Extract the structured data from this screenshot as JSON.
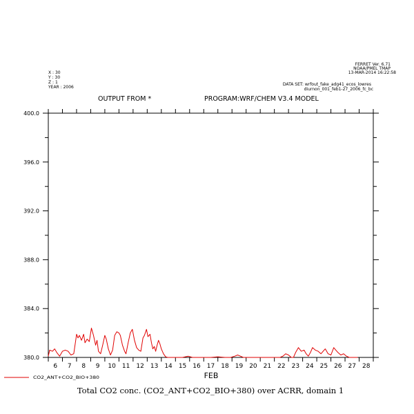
{
  "header": {
    "ferret_lines": [
      "FERRET Ver. 6.71",
      "NOAA/PMEL TMAP",
      "13-MAR-2014 16:22:58"
    ],
    "coords": [
      "X : 30",
      "Y : 30",
      "Z : 1",
      "YEAR : 2006"
    ],
    "dataset_lines": [
      "DATA SET: wrfout_fake_adg41_ecos_lowres",
      "diurnon_001_feb1-27_2006_fc_bc"
    ],
    "output_from": "OUTPUT FROM *",
    "program": "PROGRAM:WRF/CHEM V3.4 MODEL"
  },
  "chart_data": {
    "type": "line",
    "title": "Total CO2 conc. (CO2_ANT+CO2_BIO+380) over ACRR, domain 1",
    "xlabel": "FEB",
    "ylabel": "",
    "legend_label": "CO2_ANT+CO2_BIO+380",
    "xlim": [
      5.5,
      28.5
    ],
    "ylim": [
      380,
      400
    ],
    "x_ticks": [
      "6",
      "7",
      "8",
      "9",
      "10",
      "11",
      "12",
      "13",
      "14",
      "15",
      "16",
      "17",
      "18",
      "19",
      "20",
      "21",
      "22",
      "23",
      "24",
      "25",
      "26",
      "27",
      "28"
    ],
    "y_ticks": [
      "380.0",
      "384.0",
      "388.0",
      "392.0",
      "396.0",
      "400.0"
    ],
    "series": [
      {
        "color": "#e00000",
        "x": [
          5.5,
          5.6,
          5.8,
          5.95,
          6.1,
          6.3,
          6.5,
          6.7,
          6.9,
          7.1,
          7.3,
          7.5,
          7.6,
          7.7,
          7.85,
          8.0,
          8.1,
          8.25,
          8.4,
          8.55,
          8.7,
          8.85,
          8.95,
          9.05,
          9.2,
          9.35,
          9.5,
          9.6,
          9.75,
          9.9,
          10.05,
          10.2,
          10.35,
          10.5,
          10.6,
          10.75,
          10.9,
          11.0,
          11.15,
          11.3,
          11.45,
          11.6,
          11.75,
          11.9,
          12.05,
          12.2,
          12.3,
          12.45,
          12.55,
          12.7,
          12.8,
          12.9,
          13.0,
          13.1,
          13.2,
          13.3,
          13.4,
          13.5,
          13.65,
          13.8,
          13.95,
          14.1,
          14.25,
          14.4,
          14.6,
          15.0,
          15.4,
          15.7,
          16.0,
          16.3,
          16.6,
          17.0,
          17.5,
          18.0,
          18.4,
          18.7,
          18.9,
          19.1,
          19.3,
          19.6,
          20.0,
          20.4,
          20.8,
          21.2,
          21.6,
          21.9,
          22.1,
          22.3,
          22.5,
          22.7,
          22.85,
          23.0,
          23.2,
          23.4,
          23.6,
          23.75,
          23.9,
          24.05,
          24.2,
          24.4,
          24.6,
          24.8,
          24.95,
          25.1,
          25.3,
          25.5,
          25.7,
          25.85,
          26.0,
          26.2,
          26.4,
          26.6,
          26.8,
          27.0,
          27.2,
          27.4
        ],
        "values": [
          380.1,
          380.6,
          380.5,
          380.7,
          380.4,
          380.1,
          380.5,
          380.6,
          380.5,
          380.2,
          380.3,
          381.9,
          381.6,
          381.8,
          381.4,
          381.9,
          381.2,
          381.5,
          381.3,
          382.4,
          381.8,
          381.0,
          381.4,
          380.5,
          380.3,
          381.0,
          381.8,
          381.5,
          380.7,
          380.2,
          380.6,
          381.8,
          382.1,
          382.0,
          381.8,
          381.0,
          380.5,
          380.3,
          381.2,
          382.0,
          382.3,
          381.4,
          380.8,
          380.6,
          380.5,
          381.6,
          381.8,
          382.3,
          381.7,
          381.9,
          381.2,
          380.7,
          380.9,
          380.5,
          381.0,
          381.4,
          381.1,
          380.7,
          380.3,
          380.05,
          380.0,
          380.0,
          380.0,
          380.0,
          380.0,
          380.0,
          380.1,
          380.0,
          380.0,
          380.0,
          380.0,
          380.0,
          380.05,
          380.0,
          380.0,
          380.1,
          380.2,
          380.1,
          380.0,
          380.0,
          380.0,
          380.0,
          380.0,
          380.0,
          380.0,
          380.0,
          380.1,
          380.3,
          380.2,
          380.0,
          380.0,
          380.4,
          380.8,
          380.5,
          380.6,
          380.3,
          380.1,
          380.4,
          380.8,
          380.6,
          380.5,
          380.3,
          380.5,
          380.7,
          380.3,
          380.2,
          380.8,
          380.6,
          380.4,
          380.2,
          380.3,
          380.1,
          380.0,
          380.0,
          380.0,
          380.0
        ]
      }
    ]
  }
}
